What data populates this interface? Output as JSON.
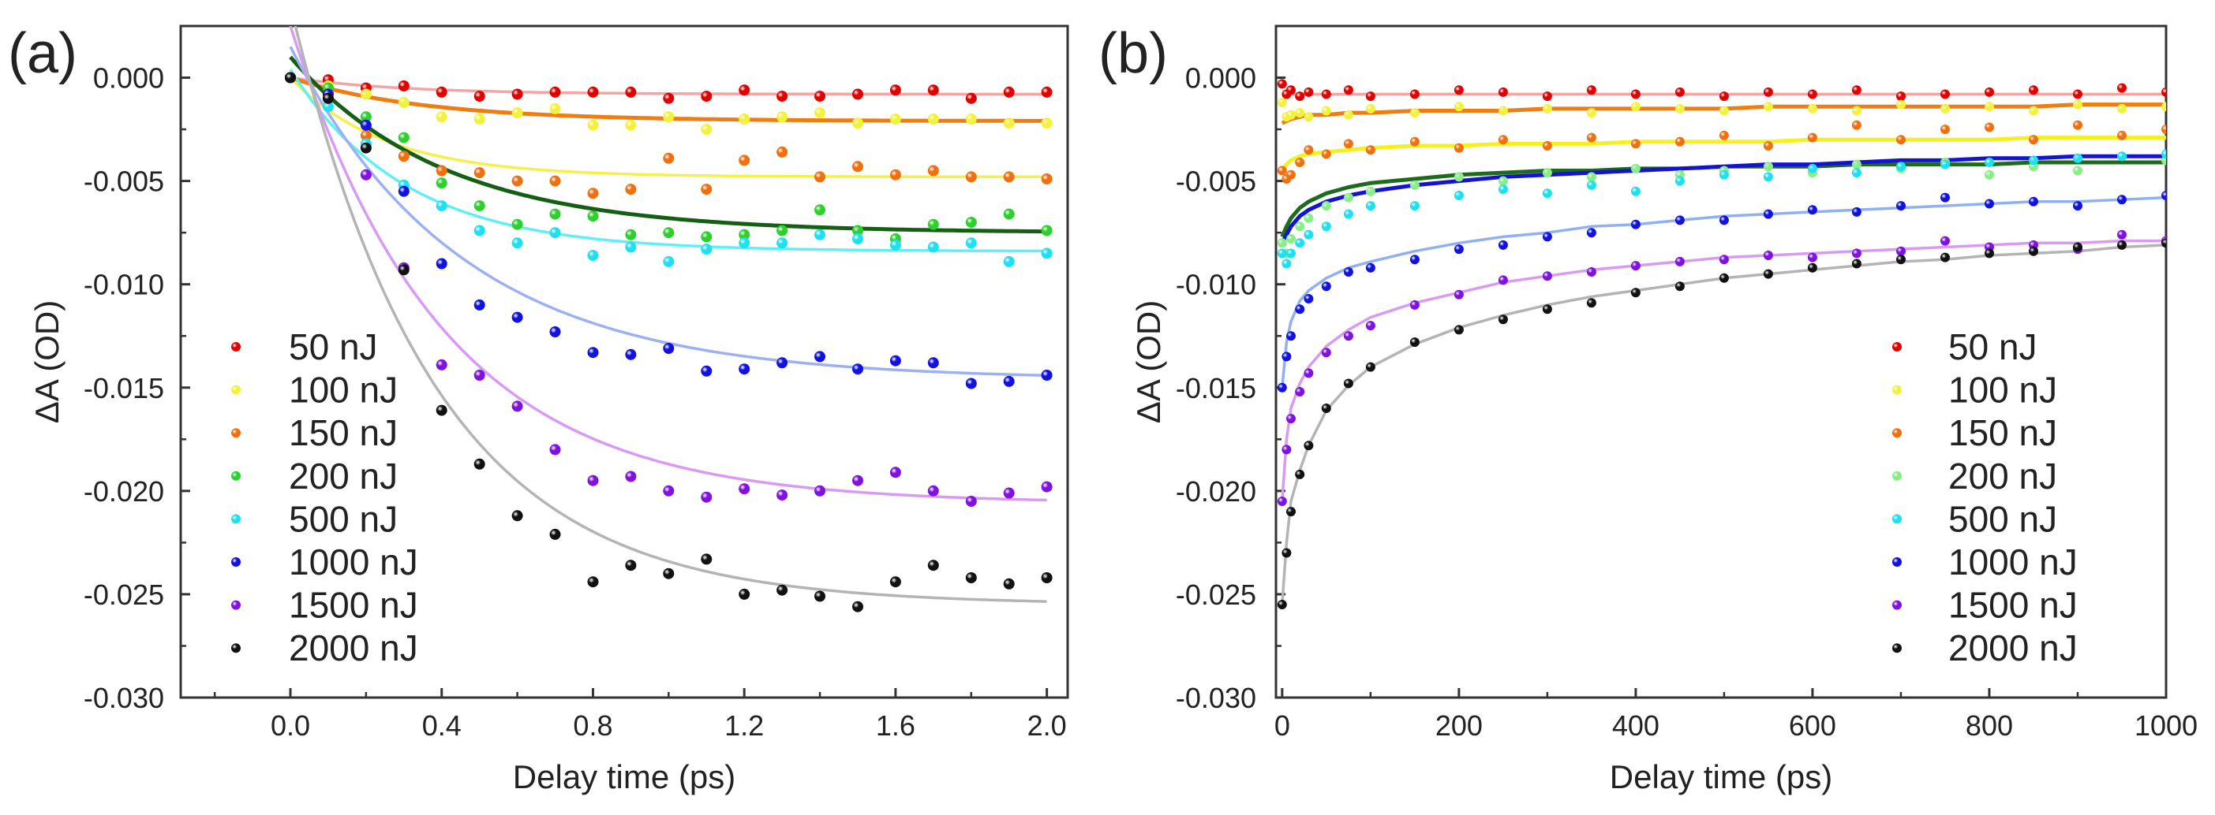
{
  "chart_data": [
    {
      "type": "scatter",
      "panel_label": "(a)",
      "xlabel": "Delay time (ps)",
      "ylabel": "ΔA (OD)",
      "xlim": [
        -0.29,
        2.055
      ],
      "ylim": [
        -0.03,
        0.0025
      ],
      "xticks": [
        0.0,
        0.4,
        0.8,
        1.2,
        1.6,
        2.0
      ],
      "xtick_labels": [
        "0.0",
        "0.4",
        "0.8",
        "1.2",
        "1.6",
        "2.0"
      ],
      "yticks": [
        0.0,
        -0.005,
        -0.01,
        -0.015,
        -0.02,
        -0.025,
        -0.03
      ],
      "ytick_labels": [
        "0.000",
        "-0.005",
        "-0.010",
        "-0.015",
        "-0.020",
        "-0.025",
        "-0.030"
      ],
      "legend_position": "lower-left",
      "x": [
        0,
        0.1,
        0.2,
        0.3,
        0.4,
        0.5,
        0.6,
        0.7,
        0.8,
        0.9,
        1.0,
        1.1,
        1.2,
        1.3,
        1.4,
        1.5,
        1.6,
        1.7,
        1.8,
        1.9,
        2.0
      ],
      "series": [
        {
          "name": "50 nJ",
          "color": "#e00000",
          "fit_color": "#f4a4a4",
          "fit": {
            "start": 0,
            "plateau": -0.0008,
            "tau": 0.3
          },
          "values": [
            0,
            -0.0001,
            -0.0005,
            -0.0004,
            -0.0007,
            -0.0009,
            -0.0008,
            -0.0007,
            -0.0007,
            -0.0007,
            -0.001,
            -0.0009,
            -0.0006,
            -0.0009,
            -0.0009,
            -0.0008,
            -0.0006,
            -0.0006,
            -0.001,
            -0.0007,
            -0.0007
          ]
        },
        {
          "name": "100 nJ",
          "color": "#f2f23a",
          "fit_color": "#ee7d12",
          "fit": {
            "start": 0,
            "plateau": -0.0021,
            "tau": 0.35
          },
          "values": [
            0,
            -0.0004,
            -0.0008,
            -0.0012,
            -0.0019,
            -0.002,
            -0.0017,
            -0.0015,
            -0.0023,
            -0.0023,
            -0.0019,
            -0.0025,
            -0.002,
            -0.0019,
            -0.0017,
            -0.0022,
            -0.002,
            -0.002,
            -0.002,
            -0.0022,
            -0.0022
          ]
        },
        {
          "name": "150 nJ",
          "color": "#f07010",
          "fit_color": "#f5f04a",
          "fit": {
            "start": 0,
            "plateau": -0.0048,
            "tau": 0.25
          },
          "values": [
            0,
            -0.0008,
            -0.0028,
            -0.0038,
            -0.0045,
            -0.0046,
            -0.005,
            -0.005,
            -0.0056,
            -0.0054,
            -0.0039,
            -0.0054,
            -0.004,
            -0.0036,
            -0.0048,
            -0.0043,
            -0.0047,
            -0.0045,
            -0.0048,
            -0.0048,
            -0.0049
          ]
        },
        {
          "name": "200 nJ",
          "color": "#2ed02e",
          "fit_color": "#145f14",
          "fit": {
            "start": 0.001,
            "plateau": -0.0075,
            "tau": 0.4
          },
          "values": [
            0,
            -0.0005,
            -0.0019,
            -0.0029,
            -0.0051,
            -0.0062,
            -0.0071,
            -0.0066,
            -0.0067,
            -0.0076,
            -0.0075,
            -0.0077,
            -0.0076,
            -0.0074,
            -0.0064,
            -0.0074,
            -0.0078,
            -0.0071,
            -0.007,
            -0.0066,
            -0.0074
          ]
        },
        {
          "name": "500 nJ",
          "color": "#1ee0f0",
          "fit_color": "#5ff0f5",
          "fit": {
            "start": 0.0004,
            "plateau": -0.0084,
            "tau": 0.3
          },
          "values": [
            0,
            -0.0014,
            -0.0032,
            -0.0052,
            -0.0062,
            -0.0074,
            -0.008,
            -0.0075,
            -0.0086,
            -0.0082,
            -0.0089,
            -0.0083,
            -0.008,
            -0.008,
            -0.0076,
            -0.0078,
            -0.0081,
            -0.0082,
            -0.008,
            -0.0089,
            -0.0085
          ]
        },
        {
          "name": "1000 nJ",
          "color": "#1212e0",
          "fit_color": "#9cb0f2",
          "fit": {
            "start": 0.0015,
            "plateau": -0.0146,
            "tau": 0.45
          },
          "values": [
            0,
            -0.0008,
            -0.0023,
            -0.0055,
            -0.009,
            -0.011,
            -0.0116,
            -0.0123,
            -0.0133,
            -0.0134,
            -0.0131,
            -0.0142,
            -0.0141,
            -0.0138,
            -0.0135,
            -0.0141,
            -0.0137,
            -0.0138,
            -0.0148,
            -0.0147,
            -0.0144
          ]
        },
        {
          "name": "1500 nJ",
          "color": "#8012e0",
          "fit_color": "#d89af2",
          "fit": {
            "start": 0.0025,
            "plateau": -0.0206,
            "tau": 0.4
          },
          "values": [
            0,
            -0.001,
            -0.0047,
            -0.0092,
            -0.0139,
            -0.0144,
            -0.0159,
            -0.018,
            -0.0195,
            -0.0193,
            -0.02,
            -0.0203,
            -0.0199,
            -0.0202,
            -0.02,
            -0.0195,
            -0.0191,
            -0.02,
            -0.0205,
            -0.0201,
            -0.0198
          ]
        },
        {
          "name": "2000 nJ",
          "color": "#111111",
          "fit_color": "#b4b4b4",
          "fit": {
            "start": 0.0035,
            "plateau": -0.0255,
            "tau": 0.38
          },
          "values": [
            0,
            -0.001,
            -0.0034,
            -0.0093,
            -0.0161,
            -0.0187,
            -0.0212,
            -0.0221,
            -0.0244,
            -0.0236,
            -0.024,
            -0.0233,
            -0.025,
            -0.0248,
            -0.0251,
            -0.0256,
            -0.0244,
            -0.0236,
            -0.0242,
            -0.0245,
            -0.0242
          ]
        }
      ]
    },
    {
      "type": "scatter",
      "panel_label": "(b)",
      "xlabel": "Delay time (ps)",
      "ylabel": "ΔA (OD)",
      "xlim": [
        -7,
        1000
      ],
      "ylim": [
        -0.03,
        0.0025
      ],
      "xticks": [
        0,
        200,
        400,
        600,
        800,
        1000
      ],
      "xtick_labels": [
        "0",
        "200",
        "400",
        "600",
        "800",
        "1000"
      ],
      "yticks": [
        0.0,
        -0.005,
        -0.01,
        -0.015,
        -0.02,
        -0.025,
        -0.03
      ],
      "ytick_labels": [
        "0.000",
        "-0.005",
        "-0.010",
        "-0.015",
        "-0.020",
        "-0.025",
        "-0.030"
      ],
      "legend_position": "lower-right",
      "x": [
        0,
        5,
        10,
        20,
        30,
        50,
        75,
        100,
        150,
        200,
        250,
        300,
        350,
        400,
        450,
        500,
        550,
        600,
        650,
        700,
        750,
        800,
        850,
        900,
        950,
        1000
      ],
      "series": [
        {
          "name": "50 nJ",
          "color": "#e00000",
          "fit_color": "#f4a4a4",
          "values": [
            -0.0003,
            -0.0008,
            -0.0006,
            -0.0009,
            -0.0007,
            -0.0008,
            -0.0006,
            -0.0009,
            -0.0008,
            -0.0006,
            -0.0007,
            -0.0009,
            -0.0006,
            -0.0008,
            -0.0007,
            -0.0009,
            -0.0007,
            -0.0008,
            -0.0006,
            -0.0009,
            -0.0008,
            -0.0007,
            -0.0006,
            -0.0008,
            -0.0005,
            -0.0007
          ],
          "fit_values": [
            -0.0008,
            -0.0008,
            -0.0008,
            -0.0008,
            -0.0008,
            -0.0008,
            -0.0008,
            -0.0008,
            -0.0008,
            -0.0008,
            -0.0008,
            -0.0008,
            -0.0008,
            -0.0008,
            -0.0008,
            -0.0008,
            -0.0008,
            -0.0008,
            -0.0008,
            -0.0008,
            -0.0008,
            -0.0008,
            -0.0008,
            -0.0008,
            -0.0008,
            -0.0008
          ]
        },
        {
          "name": "100 nJ",
          "color": "#f2f23a",
          "fit_color": "#ee7d12",
          "values": [
            -0.0012,
            -0.0019,
            -0.0018,
            -0.0017,
            -0.0019,
            -0.0016,
            -0.0018,
            -0.0015,
            -0.0017,
            -0.0014,
            -0.0016,
            -0.0015,
            -0.0017,
            -0.0014,
            -0.0015,
            -0.0016,
            -0.0014,
            -0.0015,
            -0.0016,
            -0.0013,
            -0.0015,
            -0.0014,
            -0.0016,
            -0.0013,
            -0.0015,
            -0.0014
          ],
          "fit_values": [
            -0.0022,
            -0.0021,
            -0.002,
            -0.0019,
            -0.0018,
            -0.0018,
            -0.0017,
            -0.0017,
            -0.0016,
            -0.0016,
            -0.0016,
            -0.0015,
            -0.0015,
            -0.0015,
            -0.0015,
            -0.0015,
            -0.0014,
            -0.0014,
            -0.0014,
            -0.0014,
            -0.0014,
            -0.0014,
            -0.0014,
            -0.0013,
            -0.0013,
            -0.0013
          ]
        },
        {
          "name": "150 nJ",
          "color": "#f07010",
          "fit_color": "#f5f020",
          "values": [
            -0.0045,
            -0.0049,
            -0.0047,
            -0.0041,
            -0.0035,
            -0.0037,
            -0.0032,
            -0.0035,
            -0.0031,
            -0.0034,
            -0.003,
            -0.0033,
            -0.0029,
            -0.0032,
            -0.0031,
            -0.0028,
            -0.0033,
            -0.0029,
            -0.0023,
            -0.003,
            -0.0025,
            -0.0024,
            -0.003,
            -0.0023,
            -0.0028,
            -0.0025
          ],
          "fit_values": [
            -0.0045,
            -0.0042,
            -0.004,
            -0.0038,
            -0.0037,
            -0.0036,
            -0.0035,
            -0.0034,
            -0.0033,
            -0.0033,
            -0.0032,
            -0.0032,
            -0.0032,
            -0.0031,
            -0.0031,
            -0.0031,
            -0.0031,
            -0.003,
            -0.003,
            -0.003,
            -0.003,
            -0.003,
            -0.0029,
            -0.0029,
            -0.0029,
            -0.0029
          ]
        },
        {
          "name": "200 nJ",
          "color": "#86f086",
          "fit_color": "#1d6b1d",
          "values": [
            -0.008,
            -0.0085,
            -0.0078,
            -0.0072,
            -0.0068,
            -0.0062,
            -0.0058,
            -0.0055,
            -0.0052,
            -0.0048,
            -0.005,
            -0.0046,
            -0.0048,
            -0.0044,
            -0.0047,
            -0.0045,
            -0.0043,
            -0.0046,
            -0.0042,
            -0.0044,
            -0.0041,
            -0.0047,
            -0.0043,
            -0.0045,
            -0.0038,
            -0.004
          ],
          "fit_values": [
            -0.0077,
            -0.0072,
            -0.0068,
            -0.0063,
            -0.006,
            -0.0056,
            -0.0053,
            -0.0051,
            -0.0049,
            -0.0047,
            -0.0046,
            -0.0045,
            -0.0045,
            -0.0044,
            -0.0044,
            -0.0043,
            -0.0043,
            -0.0043,
            -0.0042,
            -0.0042,
            -0.0042,
            -0.0042,
            -0.0041,
            -0.0041,
            -0.0041,
            -0.0041
          ]
        },
        {
          "name": "500 nJ",
          "color": "#1ee0f0",
          "fit_color": "#1414d0",
          "values": [
            -0.0085,
            -0.009,
            -0.0085,
            -0.008,
            -0.0076,
            -0.0072,
            -0.0066,
            -0.0062,
            -0.0062,
            -0.0057,
            -0.0054,
            -0.0056,
            -0.0052,
            -0.0055,
            -0.005,
            -0.0047,
            -0.0048,
            -0.0044,
            -0.0046,
            -0.0043,
            -0.0042,
            -0.0041,
            -0.004,
            -0.0039,
            -0.0038,
            -0.0037
          ],
          "fit_values": [
            -0.008,
            -0.0076,
            -0.0072,
            -0.0067,
            -0.0064,
            -0.006,
            -0.0057,
            -0.0055,
            -0.0052,
            -0.005,
            -0.0048,
            -0.0047,
            -0.0046,
            -0.0045,
            -0.0044,
            -0.0043,
            -0.0042,
            -0.0042,
            -0.0041,
            -0.004,
            -0.004,
            -0.0039,
            -0.0039,
            -0.0038,
            -0.0038,
            -0.0038
          ]
        },
        {
          "name": "1000 nJ",
          "color": "#1212e0",
          "fit_color": "#8fb0f2",
          "values": [
            -0.015,
            -0.0135,
            -0.0125,
            -0.0112,
            -0.0107,
            -0.0101,
            -0.0094,
            -0.0092,
            -0.0088,
            -0.0083,
            -0.0081,
            -0.0077,
            -0.0075,
            -0.0071,
            -0.0069,
            -0.0069,
            -0.0066,
            -0.0064,
            -0.0065,
            -0.0062,
            -0.0058,
            -0.0061,
            -0.006,
            -0.0062,
            -0.0059,
            -0.0057
          ],
          "fit_values": [
            -0.015,
            -0.0128,
            -0.0118,
            -0.0108,
            -0.0103,
            -0.0097,
            -0.0092,
            -0.0089,
            -0.0084,
            -0.008,
            -0.0077,
            -0.0075,
            -0.0072,
            -0.0071,
            -0.0069,
            -0.0067,
            -0.0066,
            -0.0065,
            -0.0064,
            -0.0063,
            -0.0062,
            -0.0061,
            -0.006,
            -0.006,
            -0.0059,
            -0.0058
          ]
        },
        {
          "name": "1500 nJ",
          "color": "#8012e0",
          "fit_color": "#d89af2",
          "values": [
            -0.0205,
            -0.018,
            -0.0165,
            -0.0152,
            -0.0143,
            -0.0133,
            -0.0125,
            -0.012,
            -0.011,
            -0.0105,
            -0.0098,
            -0.0096,
            -0.0094,
            -0.0091,
            -0.0089,
            -0.0088,
            -0.0086,
            -0.0087,
            -0.0085,
            -0.0084,
            -0.0079,
            -0.0082,
            -0.0081,
            -0.0083,
            -0.0076,
            -0.0079
          ],
          "fit_values": [
            -0.0205,
            -0.0175,
            -0.016,
            -0.0148,
            -0.014,
            -0.013,
            -0.0122,
            -0.0116,
            -0.0109,
            -0.0104,
            -0.0099,
            -0.0096,
            -0.0093,
            -0.0091,
            -0.0089,
            -0.0087,
            -0.0086,
            -0.0085,
            -0.0084,
            -0.0083,
            -0.0082,
            -0.0081,
            -0.008,
            -0.008,
            -0.0079,
            -0.0079
          ]
        },
        {
          "name": "2000 nJ",
          "color": "#111111",
          "fit_color": "#b4b4b4",
          "values": [
            -0.0255,
            -0.023,
            -0.021,
            -0.0192,
            -0.0178,
            -0.016,
            -0.0148,
            -0.014,
            -0.0128,
            -0.0122,
            -0.0117,
            -0.0112,
            -0.0109,
            -0.0104,
            -0.0101,
            -0.0097,
            -0.0095,
            -0.0092,
            -0.009,
            -0.0088,
            -0.0087,
            -0.0085,
            -0.0084,
            -0.0082,
            -0.0081,
            -0.008
          ],
          "fit_values": [
            -0.0255,
            -0.0225,
            -0.0205,
            -0.019,
            -0.0178,
            -0.0161,
            -0.0149,
            -0.014,
            -0.0129,
            -0.0121,
            -0.0115,
            -0.011,
            -0.0106,
            -0.0103,
            -0.01,
            -0.0097,
            -0.0095,
            -0.0093,
            -0.0091,
            -0.0089,
            -0.0088,
            -0.0086,
            -0.0085,
            -0.0084,
            -0.0082,
            -0.0081
          ]
        }
      ]
    }
  ]
}
